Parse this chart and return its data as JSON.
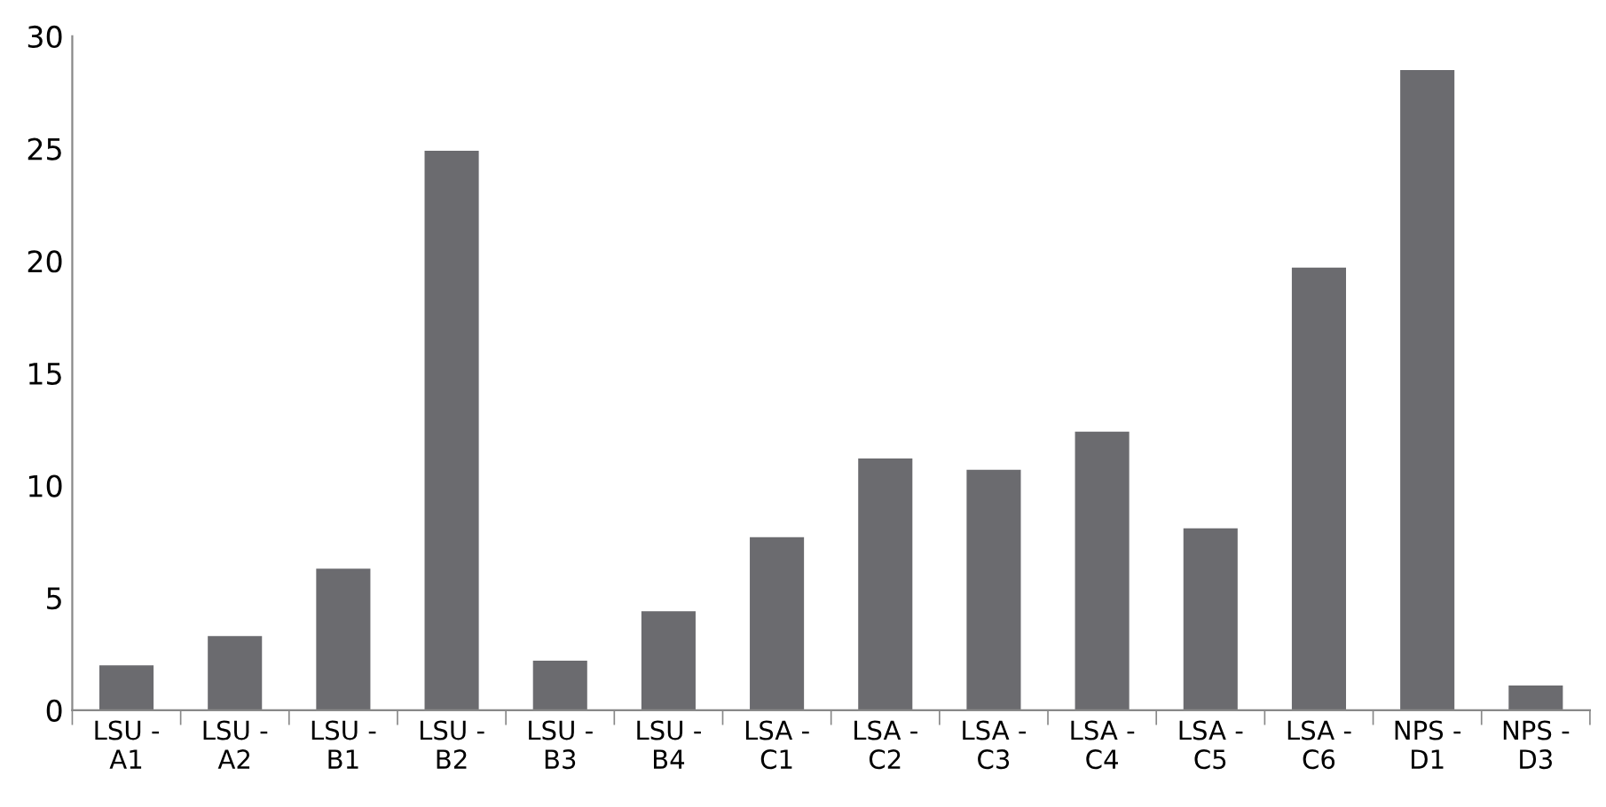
{
  "chart_data": {
    "type": "bar",
    "categories": [
      "LSU -\nA1",
      "LSU -\nA2",
      "LSU -\nB1",
      "LSU -\nB2",
      "LSU -\nB3",
      "LSU -\nB4",
      "LSA -\nC1",
      "LSA -\nC2",
      "LSA -\nC3",
      "LSA -\nC4",
      "LSA -\nC5",
      "LSA -\nC6",
      "NPS -\nD1",
      "NPS -\nD3"
    ],
    "values": [
      2.0,
      3.3,
      6.3,
      24.9,
      2.2,
      4.4,
      7.7,
      11.2,
      10.7,
      12.4,
      8.1,
      19.7,
      28.5,
      1.1
    ],
    "color": "#6b6b6f",
    "ylim": [
      0,
      30
    ],
    "yticks": [
      0,
      5,
      10,
      15,
      20,
      25,
      30
    ],
    "grid": false,
    "legend": false
  }
}
